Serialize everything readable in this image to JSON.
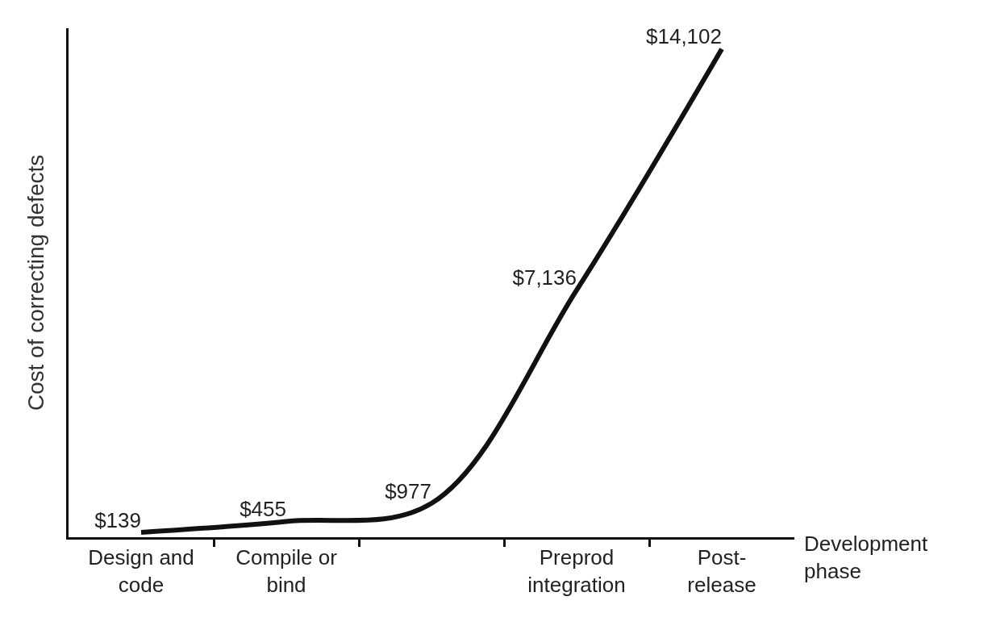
{
  "chart_data": {
    "type": "line",
    "xlabel": "Development phase",
    "ylabel": "Cost of correcting defects",
    "categories": [
      "Design and code",
      "Compile or bind",
      null,
      "Preprod integration",
      "Post-release"
    ],
    "series": [
      {
        "color": "#111111",
        "values": [
          139,
          455,
          977,
          7136,
          14102
        ],
        "value_labels": [
          "$139",
          "$455",
          "$977",
          "$7,136",
          "$14,102"
        ]
      }
    ],
    "ylim": [
      0,
      14700
    ],
    "marker": "none",
    "line_style": "solid"
  }
}
